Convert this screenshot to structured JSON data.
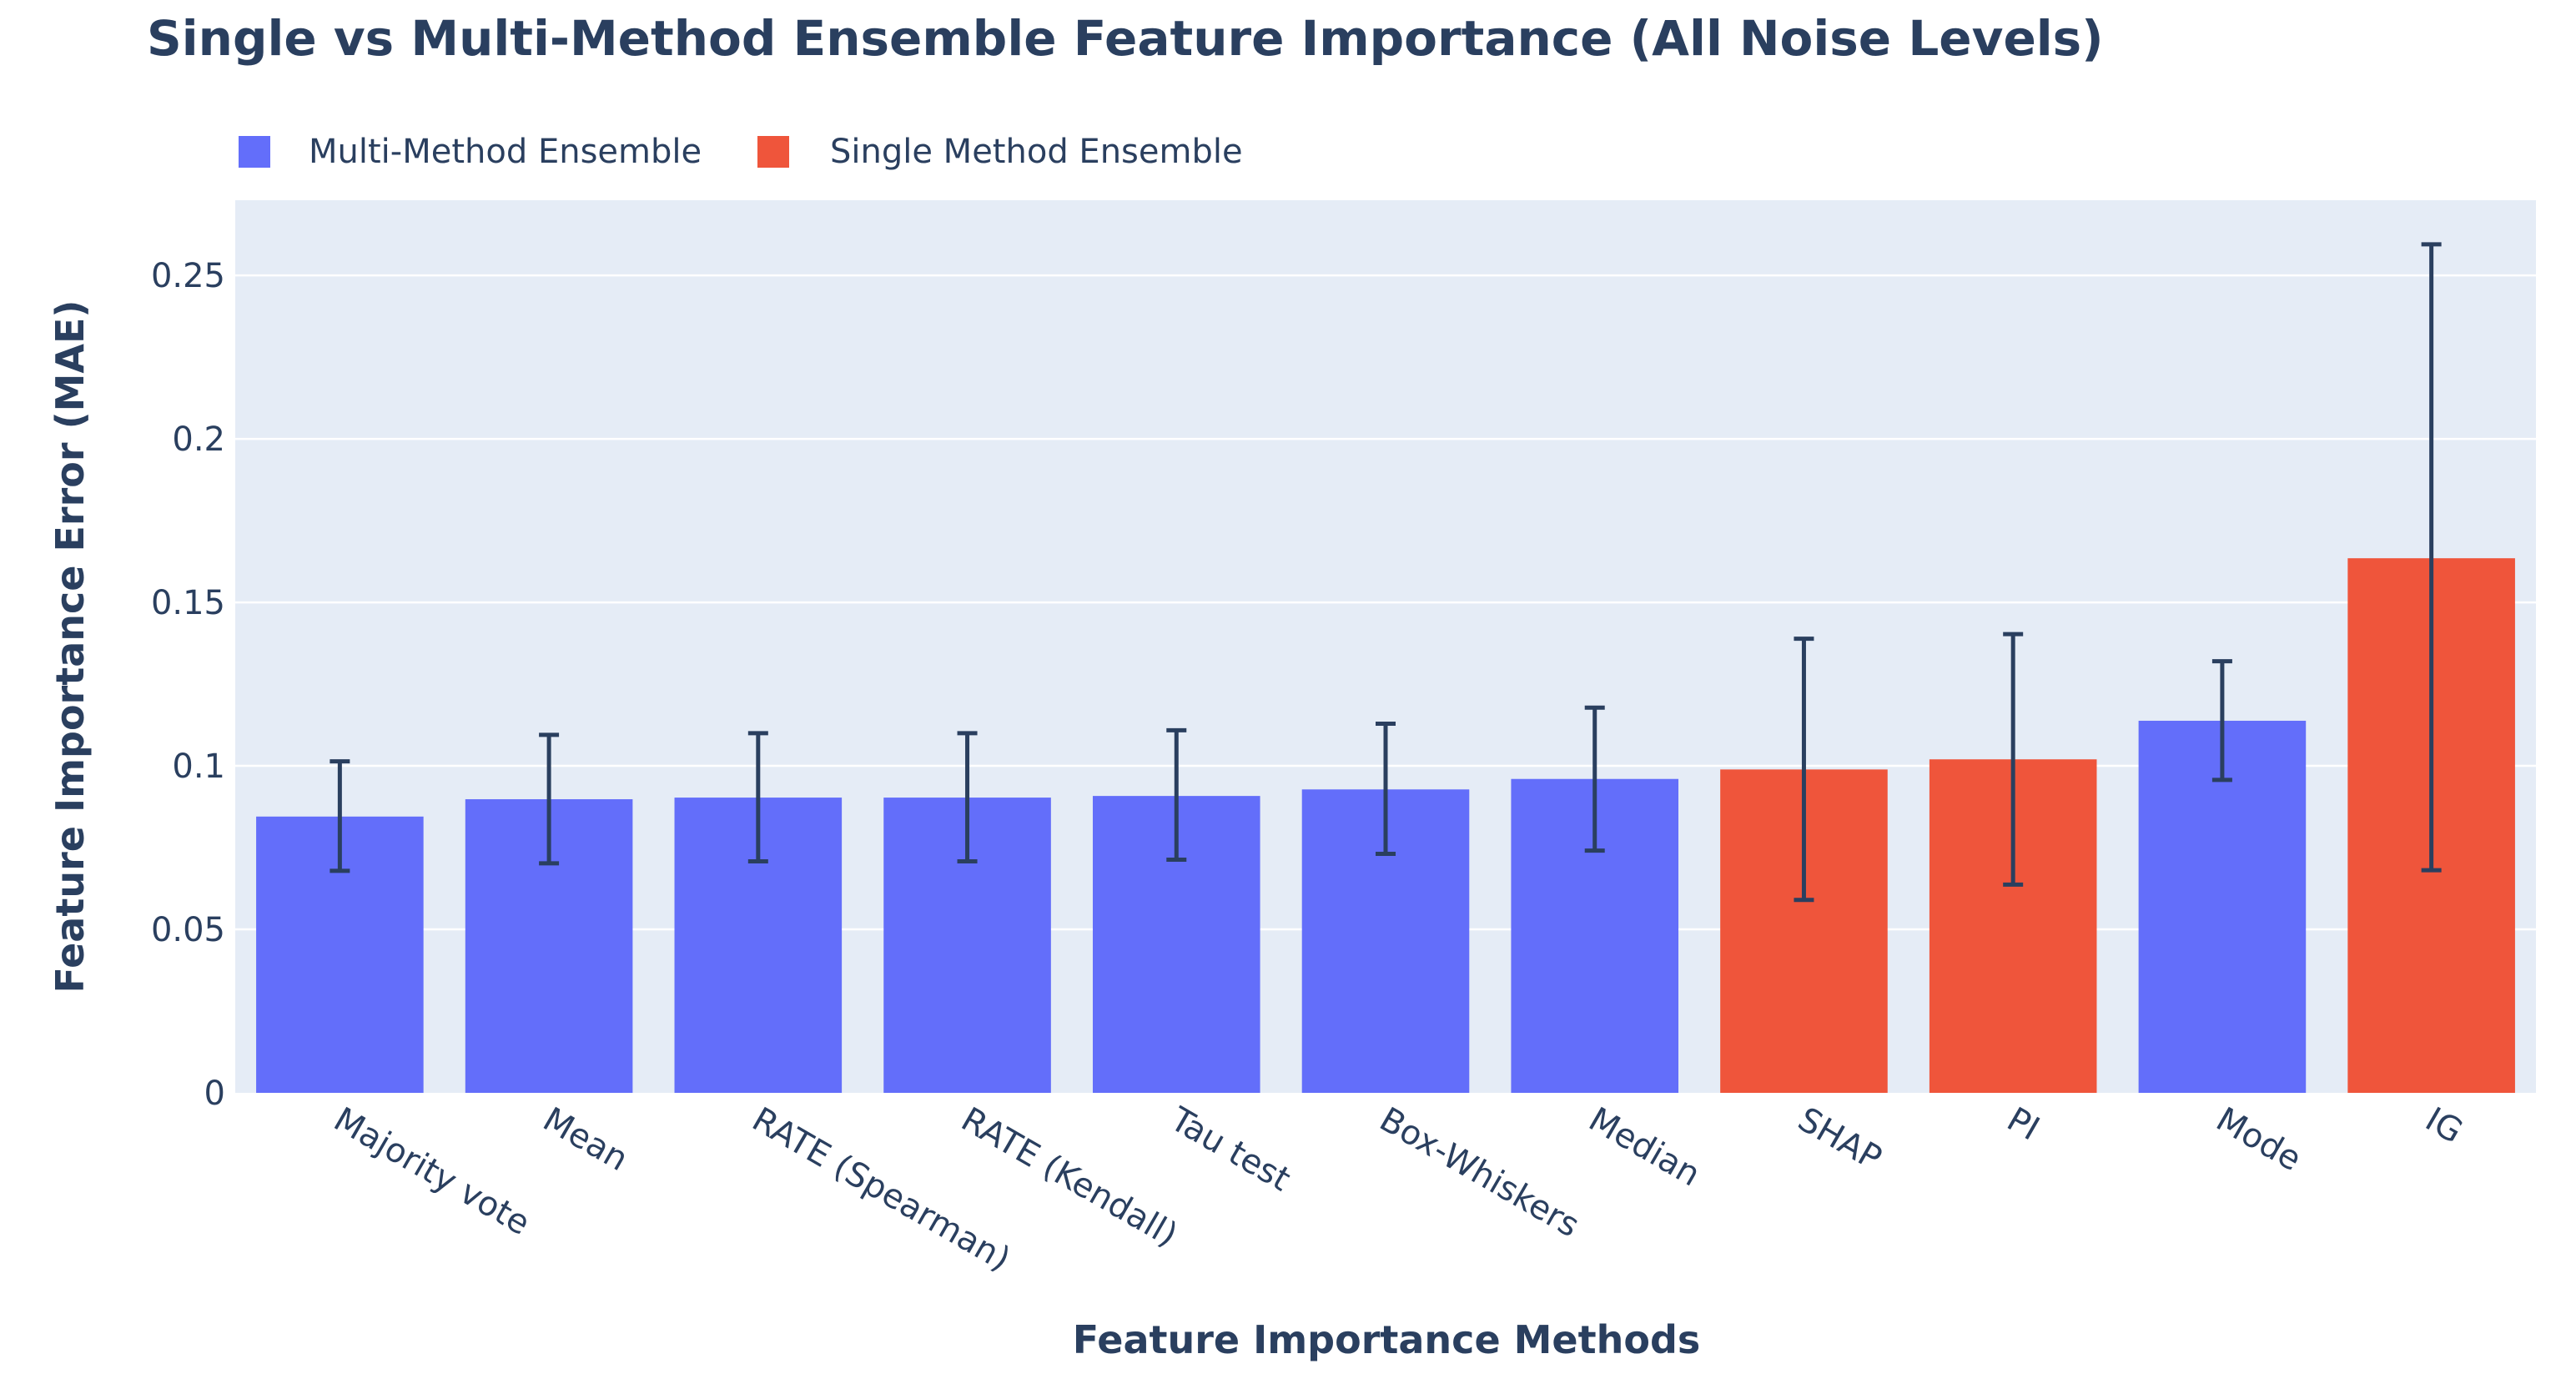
{
  "chart_data": {
    "type": "bar",
    "title": "Single vs Multi-Method Ensemble Feature Importance (All Noise Levels)",
    "xlabel": "Feature Importance Methods",
    "ylabel": "Feature Importance Error (MAE)",
    "ylim": [
      0,
      0.273
    ],
    "yticks": [
      0,
      0.05,
      0.1,
      0.15,
      0.2,
      0.25
    ],
    "ytick_labels": [
      "0",
      "0.05",
      "0.1",
      "0.15",
      "0.2",
      "0.25"
    ],
    "grid": true,
    "legend_position": "top-left",
    "legend": [
      {
        "name": "Multi-Method Ensemble",
        "color": "#636efa"
      },
      {
        "name": "Single Method Ensemble",
        "color": "#ef553b"
      }
    ],
    "categories": [
      "Majority vote",
      "Mean",
      "RATE (Spearman)",
      "RATE (Kendall)",
      "Tau test",
      "Box-Whiskers",
      "Median",
      "SHAP",
      "PI",
      "Mode",
      "IG"
    ],
    "values": [
      0.0845,
      0.0898,
      0.0903,
      0.0903,
      0.0908,
      0.0928,
      0.096,
      0.0989,
      0.102,
      0.1138,
      0.1635
    ],
    "error_low": [
      0.0679,
      0.0702,
      0.0708,
      0.0708,
      0.0713,
      0.0731,
      0.0741,
      0.059,
      0.0637,
      0.0957,
      0.0681
    ],
    "error_high": [
      0.1014,
      0.1095,
      0.11,
      0.11,
      0.1109,
      0.1129,
      0.1178,
      0.1389,
      0.1403,
      0.132,
      0.2595
    ],
    "groups": [
      "Multi-Method Ensemble",
      "Multi-Method Ensemble",
      "Multi-Method Ensemble",
      "Multi-Method Ensemble",
      "Multi-Method Ensemble",
      "Multi-Method Ensemble",
      "Multi-Method Ensemble",
      "Single Method Ensemble",
      "Single Method Ensemble",
      "Multi-Method Ensemble",
      "Single Method Ensemble"
    ]
  },
  "colors": {
    "plot_background": "#e5ecf6",
    "grid": "#ffffff",
    "text": "#2a3f5f",
    "error_bar": "#2a3f5f"
  }
}
